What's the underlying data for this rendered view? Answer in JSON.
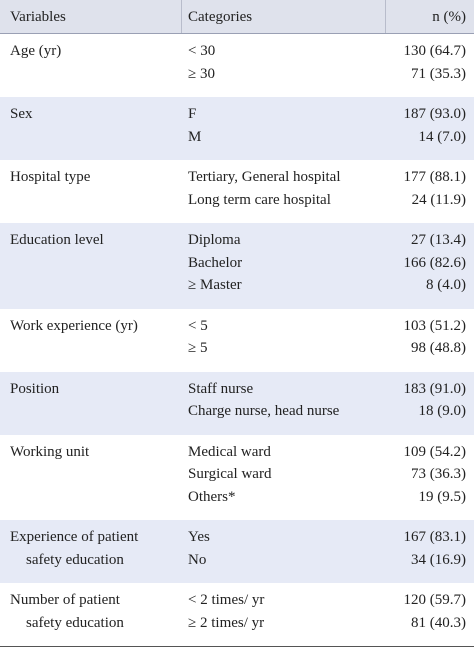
{
  "table": {
    "header": [
      "Variables",
      "Categories",
      "n (%)"
    ],
    "groups": [
      {
        "variable": [
          "Age (yr)"
        ],
        "rows": [
          [
            "< 30",
            "130 (64.7)"
          ],
          [
            "≥ 30",
            "71 (35.3)"
          ]
        ]
      },
      {
        "variable": [
          "Sex"
        ],
        "rows": [
          [
            "F",
            "187 (93.0)"
          ],
          [
            "M",
            "14 (7.0)"
          ]
        ]
      },
      {
        "variable": [
          "Hospital type"
        ],
        "rows": [
          [
            "Tertiary, General hospital",
            "177 (88.1)"
          ],
          [
            "Long term care hospital",
            "24 (11.9)"
          ]
        ]
      },
      {
        "variable": [
          "Education level"
        ],
        "rows": [
          [
            "Diploma",
            "27 (13.4)"
          ],
          [
            "Bachelor",
            "166 (82.6)"
          ],
          [
            "≥ Master",
            "8 (4.0)"
          ]
        ]
      },
      {
        "variable": [
          "Work experience (yr)"
        ],
        "rows": [
          [
            "< 5",
            "103 (51.2)"
          ],
          [
            "≥ 5",
            "98 (48.8)"
          ]
        ]
      },
      {
        "variable": [
          "Position"
        ],
        "rows": [
          [
            "Staff nurse",
            "183 (91.0)"
          ],
          [
            "Charge nurse, head nurse",
            "18 (9.0)"
          ]
        ]
      },
      {
        "variable": [
          "Working unit"
        ],
        "rows": [
          [
            "Medical ward",
            "109 (54.2)"
          ],
          [
            "Surgical ward",
            "73 (36.3)"
          ],
          [
            "Others*",
            "19 (9.5)"
          ]
        ]
      },
      {
        "variable": [
          "Experience of patient",
          "safety education"
        ],
        "rows": [
          [
            "Yes",
            "167 (83.1)"
          ],
          [
            "No",
            "34 (16.9)"
          ]
        ]
      },
      {
        "variable": [
          "Number of patient",
          "safety education"
        ],
        "rows": [
          [
            "< 2 times/ yr",
            "120 (59.7)"
          ],
          [
            "≥ 2 times/ yr",
            "81 (40.3)"
          ]
        ]
      }
    ]
  }
}
